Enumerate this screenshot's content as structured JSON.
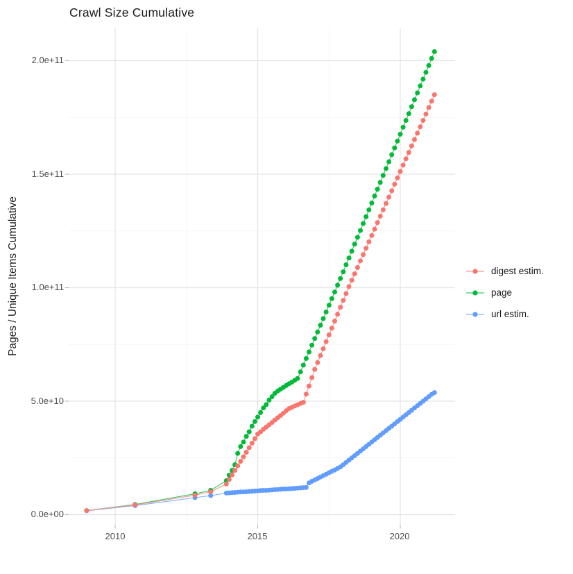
{
  "chart_data": {
    "type": "line",
    "title": "Crawl Size Cumulative",
    "xlabel": "",
    "ylabel": "Pages / Unique Items Cumulative",
    "legend_position": "right",
    "grid": "major+minor",
    "xlim": [
      2008.35,
      2021.85
    ],
    "ylim": [
      -4400000000.0,
      214500000000.0
    ],
    "x_ticks": [
      {
        "label": "2010",
        "year": 2010
      },
      {
        "label": "2015",
        "year": 2015
      },
      {
        "label": "2020",
        "year": 2020
      }
    ],
    "x_minor": [
      2012.5,
      2017.5
    ],
    "y_ticks": [
      {
        "label": "0.0e+00",
        "value": 0
      },
      {
        "label": "5.0e+10",
        "value": 50000000000.0
      },
      {
        "label": "1.0e+11",
        "value": 100000000000.0
      },
      {
        "label": "1.5e+11",
        "value": 150000000000.0
      },
      {
        "label": "2.0e+11",
        "value": 200000000000.0
      }
    ],
    "y_minor": [
      25000000000.0,
      75000000000.0,
      125000000000.0,
      175000000000.0
    ],
    "value_scale": 10000000000.0,
    "x": [
      2009.0,
      2010.7,
      2012.8,
      2013.35,
      2013.9,
      2014.0,
      2014.1,
      2014.2,
      2014.3,
      2014.4,
      2014.5,
      2014.6,
      2014.7,
      2014.8,
      2014.9,
      2015.0,
      2015.1,
      2015.2,
      2015.3,
      2015.4,
      2015.5,
      2015.6,
      2015.7,
      2015.8,
      2015.9,
      2016.0,
      2016.1,
      2016.2,
      2016.3,
      2016.4,
      2016.5,
      2016.6,
      2016.7,
      2016.8,
      2016.9,
      2017.0,
      2017.1,
      2017.2,
      2017.3,
      2017.4,
      2017.5,
      2017.6,
      2017.7,
      2017.8,
      2017.9,
      2018.0,
      2018.1,
      2018.2,
      2018.3,
      2018.4,
      2018.5,
      2018.6,
      2018.7,
      2018.8,
      2018.9,
      2019.0,
      2019.1,
      2019.2,
      2019.3,
      2019.4,
      2019.5,
      2019.6,
      2019.7,
      2019.8,
      2019.9,
      2020.0,
      2020.1,
      2020.2,
      2020.3,
      2020.4,
      2020.5,
      2020.6,
      2020.7,
      2020.8,
      2020.9,
      2021.0,
      2021.1,
      2021.2
    ],
    "series": [
      {
        "name": "digest estim.",
        "color": "#F8766D",
        "values": [
          0.18,
          0.43,
          0.86,
          1.01,
          1.35,
          1.55,
          1.75,
          1.95,
          2.15,
          2.35,
          2.55,
          2.75,
          2.95,
          3.15,
          3.35,
          3.55,
          3.65,
          3.76,
          3.86,
          3.96,
          4.06,
          4.17,
          4.27,
          4.37,
          4.47,
          4.58,
          4.68,
          4.73,
          4.79,
          4.84,
          4.9,
          4.95,
          5.31,
          5.67,
          6.04,
          6.4,
          6.7,
          7.01,
          7.31,
          7.62,
          7.92,
          8.22,
          8.53,
          8.83,
          9.14,
          9.44,
          9.74,
          10.05,
          10.33,
          10.61,
          10.89,
          11.18,
          11.46,
          11.74,
          12.02,
          12.3,
          12.58,
          12.87,
          13.15,
          13.43,
          13.71,
          13.99,
          14.27,
          14.56,
          14.84,
          15.12,
          15.4,
          15.68,
          15.96,
          16.25,
          16.53,
          16.81,
          17.09,
          17.37,
          17.65,
          17.94,
          18.22,
          18.5
        ]
      },
      {
        "name": "page",
        "color": "#00BA38",
        "values": [
          0.18,
          0.45,
          0.92,
          1.07,
          1.5,
          1.74,
          1.95,
          2.2,
          2.7,
          3.0,
          3.2,
          3.45,
          3.65,
          3.9,
          4.1,
          4.3,
          4.5,
          4.7,
          4.85,
          5.05,
          5.2,
          5.35,
          5.45,
          5.53,
          5.61,
          5.69,
          5.77,
          5.84,
          5.92,
          6.0,
          6.29,
          6.59,
          6.88,
          7.17,
          7.47,
          7.76,
          8.05,
          8.35,
          8.64,
          8.93,
          9.23,
          9.52,
          9.81,
          10.11,
          10.4,
          10.7,
          11.01,
          11.31,
          11.61,
          11.92,
          12.22,
          12.52,
          12.83,
          13.13,
          13.43,
          13.73,
          14.04,
          14.34,
          14.64,
          14.95,
          15.25,
          15.55,
          15.86,
          16.16,
          16.46,
          16.76,
          17.07,
          17.37,
          17.67,
          17.98,
          18.28,
          18.58,
          18.89,
          19.19,
          19.49,
          19.79,
          20.1,
          20.4
        ]
      },
      {
        "name": "url estim.",
        "color": "#619CFF",
        "values": [
          0.17,
          0.4,
          0.75,
          0.84,
          0.95,
          0.96,
          0.97,
          0.98,
          0.99,
          1.0,
          1.0,
          1.01,
          1.02,
          1.03,
          1.04,
          1.05,
          1.06,
          1.07,
          1.07,
          1.08,
          1.09,
          1.1,
          1.11,
          1.12,
          1.13,
          1.13,
          1.14,
          1.15,
          1.16,
          1.17,
          1.18,
          1.19,
          1.2,
          1.4,
          1.47,
          1.53,
          1.59,
          1.66,
          1.72,
          1.78,
          1.85,
          1.91,
          1.97,
          2.04,
          2.1,
          2.2,
          2.3,
          2.4,
          2.5,
          2.6,
          2.7,
          2.8,
          2.9,
          3.0,
          3.1,
          3.2,
          3.3,
          3.4,
          3.5,
          3.6,
          3.7,
          3.8,
          3.9,
          4.0,
          4.1,
          4.2,
          4.3,
          4.4,
          4.5,
          4.6,
          4.7,
          4.8,
          4.9,
          5.0,
          5.1,
          5.2,
          5.3,
          5.38
        ]
      }
    ]
  },
  "style": {
    "grid_major_color": "#e4e4e4",
    "grid_minor_color": "#f2f2f2",
    "tick_color": "#b8b8b8",
    "axis_text_color": "#4d4d4d"
  }
}
